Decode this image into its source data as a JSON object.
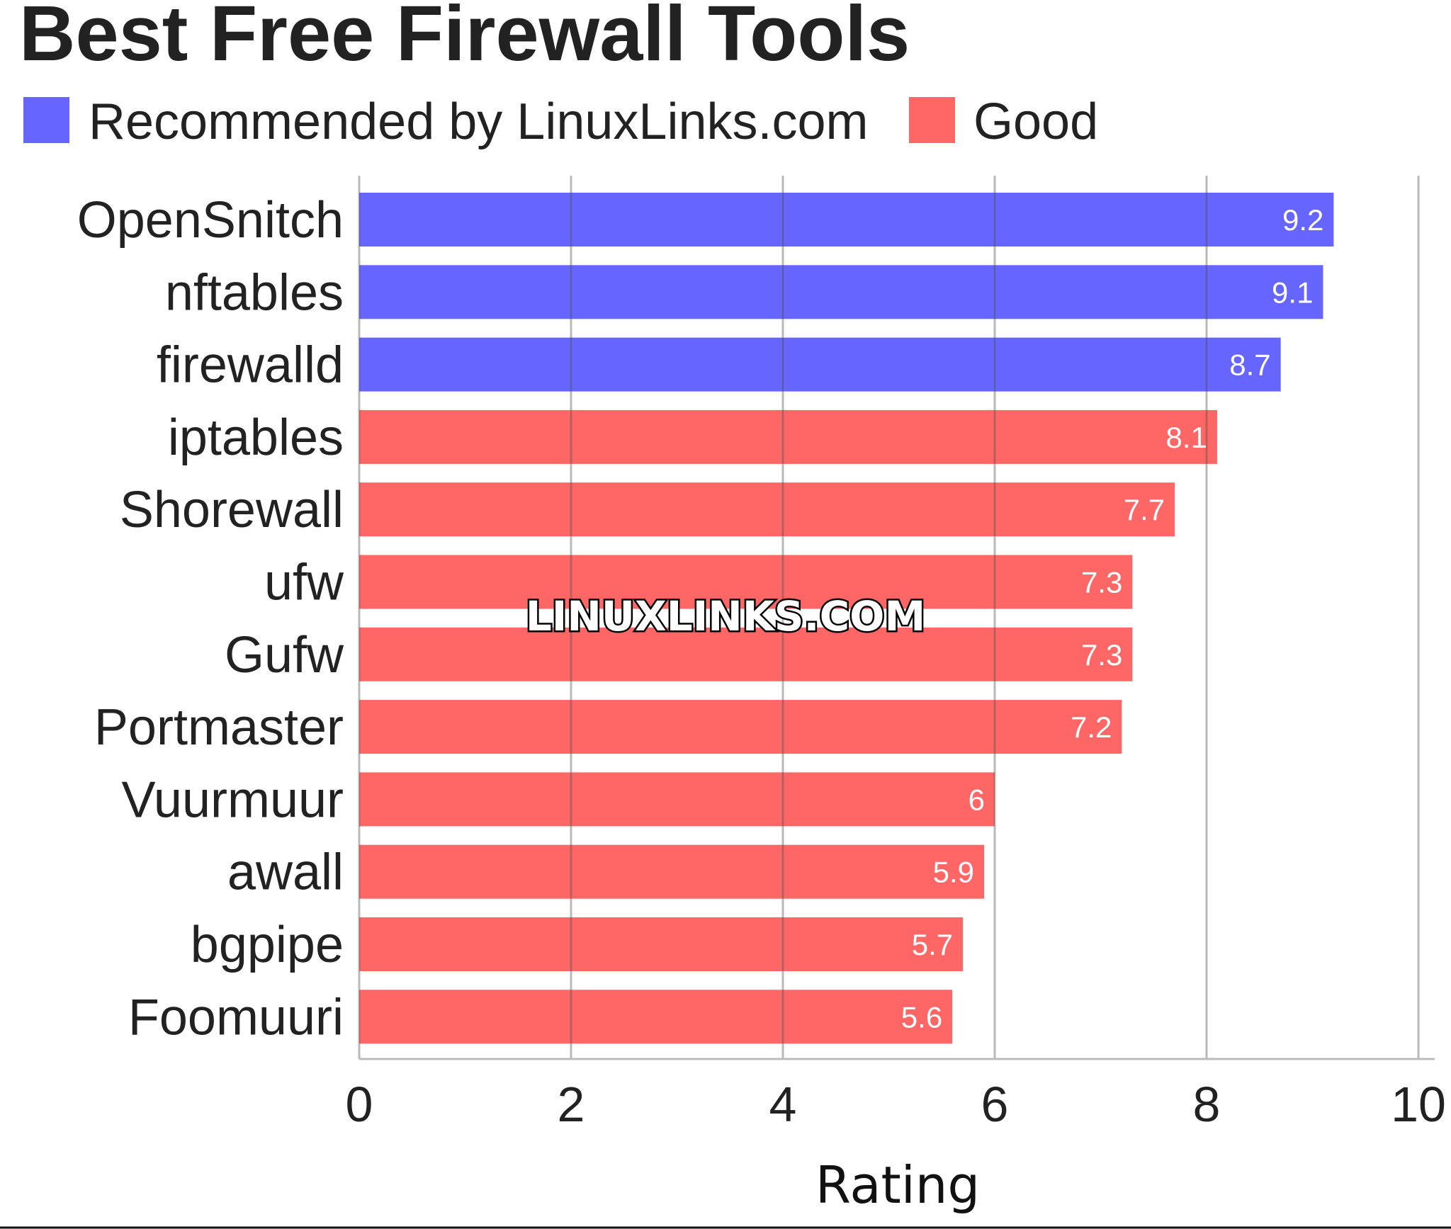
{
  "chart_data": {
    "type": "bar",
    "orientation": "horizontal",
    "title": "Best Free Firewall Tools",
    "xlabel": "Rating",
    "ylabel": "",
    "xlim": [
      0,
      10
    ],
    "xticks": [
      "0",
      "2",
      "4",
      "6",
      "8",
      "10"
    ],
    "grid": true,
    "legend_placement": "top-left",
    "legend": [
      {
        "name": "Recommended by LinuxLinks.com",
        "color": "#6666ff"
      },
      {
        "name": "Good",
        "color": "#ff6666"
      }
    ],
    "categories": [
      "OpenSnitch",
      "nftables",
      "firewalld",
      "iptables",
      "Shorewall",
      "ufw",
      "Gufw",
      "Portmaster",
      "Vuurmuur",
      "awall",
      "bgpipe",
      "Foomuuri"
    ],
    "values": [
      9.2,
      9.1,
      8.7,
      8.1,
      7.7,
      7.3,
      7.3,
      7.2,
      6,
      5.9,
      5.7,
      5.6
    ],
    "value_labels": [
      "9.2",
      "9.1",
      "8.7",
      "8.1",
      "7.7",
      "7.3",
      "7.3",
      "7.2",
      "6",
      "5.9",
      "5.7",
      "5.6"
    ],
    "groups": [
      0,
      0,
      0,
      1,
      1,
      1,
      1,
      1,
      1,
      1,
      1,
      1
    ]
  },
  "watermark": "LINUXLINKS.COM"
}
